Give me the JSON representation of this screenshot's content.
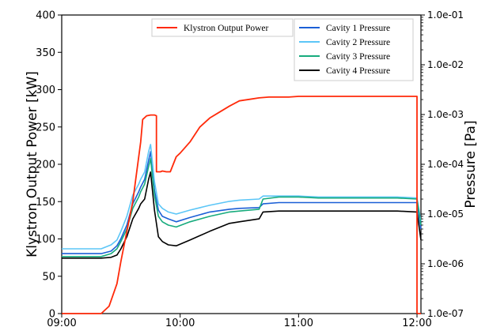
{
  "chart_data": {
    "type": "line",
    "title": "",
    "xlabel": "",
    "ylabel": "Klystron Output Power [kW]",
    "ylabel_right": "Pressure [Pa]",
    "x_ticks": [
      "09:00",
      "10:00",
      "11:00",
      "12:00"
    ],
    "xlim": [
      "09:00",
      "12:02"
    ],
    "ylim": [
      0,
      400
    ],
    "y_ticks": [
      0,
      50,
      100,
      150,
      200,
      250,
      300,
      350,
      400
    ],
    "y2_scale": "log",
    "y2lim": [
      1e-07,
      0.1
    ],
    "y2_ticks": [
      "1.0e-07",
      "1.0e-06",
      "1.0e-05",
      "1.0e-04",
      "1.0e-03",
      "1.0e-02",
      "1.0e-01"
    ],
    "grid": false,
    "legend_left": {
      "placement": "top-center",
      "entries": [
        "Klystron Output Power"
      ]
    },
    "legend_right": {
      "placement": "top-right",
      "entries": [
        "Cavity 1 Pressure",
        "Cavity 2 Pressure",
        "Cavity 3 Pressure",
        "Cavity 4 Pressure"
      ]
    },
    "series": [
      {
        "name": "Klystron Output Power",
        "axis": "left",
        "color": "#ff2a0a",
        "x": [
          "09:00",
          "09:20",
          "09:24",
          "09:28",
          "09:30",
          "09:33",
          "09:36",
          "09:38",
          "09:40",
          "09:41",
          "09:43",
          "09:45",
          "09:47",
          "09:48",
          "09:48",
          "09:50",
          "09:51",
          "09:53",
          "09:55",
          "09:58",
          "10:00",
          "10:05",
          "10:10",
          "10:15",
          "10:20",
          "10:25",
          "10:30",
          "10:35",
          "10:40",
          "10:45",
          "10:50",
          "10:55",
          "11:00",
          "11:10",
          "11:20",
          "11:30",
          "11:40",
          "11:50",
          "12:00",
          "12:00",
          "12:02"
        ],
        "y": [
          0,
          0,
          10,
          40,
          70,
          110,
          150,
          190,
          230,
          260,
          265,
          266,
          266,
          265,
          190,
          190,
          191,
          190,
          190,
          210,
          215,
          230,
          250,
          262,
          270,
          278,
          285,
          287,
          289,
          290,
          290,
          290,
          291,
          291,
          291,
          291,
          291,
          291,
          291,
          0,
          0
        ]
      },
      {
        "name": "Cavity 1 Pressure",
        "axis": "right",
        "color": "#1b5fd6",
        "x": [
          "09:00",
          "09:20",
          "09:25",
          "09:28",
          "09:30",
          "09:33",
          "09:36",
          "09:39",
          "09:40",
          "09:42",
          "09:44",
          "09:45",
          "09:47",
          "09:49",
          "09:51",
          "09:54",
          "09:58",
          "10:05",
          "10:15",
          "10:25",
          "10:30",
          "10:40",
          "10:42",
          "10:50",
          "11:00",
          "11:10",
          "11:20",
          "11:30",
          "11:40",
          "11:50",
          "12:00",
          "12:02"
        ],
        "y": [
          1.6e-06,
          1.6e-06,
          1.8e-06,
          2.3e-06,
          3.2e-06,
          6e-06,
          1.6e-05,
          2.8e-05,
          3.5e-05,
          5e-05,
          0.00012,
          0.00018,
          3e-05,
          1.2e-05,
          9e-06,
          8e-06,
          7e-06,
          8.5e-06,
          1.1e-05,
          1.25e-05,
          1.3e-05,
          1.35e-05,
          1.6e-05,
          1.7e-05,
          1.7e-05,
          1.7e-05,
          1.7e-05,
          1.7e-05,
          1.7e-05,
          1.7e-05,
          1.7e-05,
          5e-06
        ]
      },
      {
        "name": "Cavity 2 Pressure",
        "axis": "right",
        "color": "#5cc6f7",
        "x": [
          "09:00",
          "09:20",
          "09:25",
          "09:28",
          "09:30",
          "09:33",
          "09:36",
          "09:39",
          "09:40",
          "09:42",
          "09:44",
          "09:45",
          "09:47",
          "09:49",
          "09:51",
          "09:54",
          "09:58",
          "10:05",
          "10:15",
          "10:25",
          "10:30",
          "10:40",
          "10:42",
          "10:50",
          "11:00",
          "11:10",
          "11:20",
          "11:30",
          "11:40",
          "11:50",
          "12:00",
          "12:02"
        ],
        "y": [
          2e-06,
          2e-06,
          2.4e-06,
          3e-06,
          4.5e-06,
          9e-06,
          2.4e-05,
          4e-05,
          5e-05,
          7e-05,
          0.00018,
          0.00025,
          4.5e-05,
          1.6e-05,
          1.3e-05,
          1.1e-05,
          1e-05,
          1.2e-05,
          1.5e-05,
          1.8e-05,
          1.9e-05,
          2e-05,
          2.3e-05,
          2.3e-05,
          2.3e-05,
          2.2e-05,
          2.2e-05,
          2.2e-05,
          2.2e-05,
          2.2e-05,
          2.1e-05,
          7e-06
        ]
      },
      {
        "name": "Cavity 3 Pressure",
        "axis": "right",
        "color": "#17ab7d",
        "x": [
          "09:00",
          "09:20",
          "09:25",
          "09:28",
          "09:30",
          "09:33",
          "09:36",
          "09:39",
          "09:40",
          "09:42",
          "09:44",
          "09:45",
          "09:47",
          "09:49",
          "09:51",
          "09:54",
          "09:58",
          "10:05",
          "10:15",
          "10:25",
          "10:30",
          "10:40",
          "10:42",
          "10:50",
          "11:00",
          "11:10",
          "11:20",
          "11:30",
          "11:40",
          "11:50",
          "12:00",
          "12:02"
        ],
        "y": [
          1.4e-06,
          1.4e-06,
          1.6e-06,
          2e-06,
          2.8e-06,
          5e-06,
          1.3e-05,
          2.2e-05,
          2.8e-05,
          4e-05,
          9e-05,
          0.00013,
          2.4e-05,
          9e-06,
          7e-06,
          6e-06,
          5.5e-06,
          7e-06,
          9e-06,
          1.1e-05,
          1.15e-05,
          1.25e-05,
          2e-05,
          2.2e-05,
          2.2e-05,
          2.1e-05,
          2.1e-05,
          2.1e-05,
          2.1e-05,
          2.1e-05,
          2e-05,
          6e-06
        ]
      },
      {
        "name": "Cavity 4 Pressure",
        "axis": "right",
        "color": "#000000",
        "x": [
          "09:00",
          "09:20",
          "09:25",
          "09:28",
          "09:30",
          "09:33",
          "09:36",
          "09:39",
          "09:40",
          "09:42",
          "09:44",
          "09:45",
          "09:47",
          "09:49",
          "09:51",
          "09:54",
          "09:58",
          "10:05",
          "10:15",
          "10:25",
          "10:30",
          "10:40",
          "10:42",
          "10:50",
          "11:00",
          "11:10",
          "11:20",
          "11:30",
          "11:40",
          "11:50",
          "12:00",
          "12:02"
        ],
        "y": [
          1.3e-06,
          1.3e-06,
          1.35e-06,
          1.5e-06,
          2e-06,
          3.5e-06,
          8e-06,
          1.3e-05,
          1.6e-05,
          2e-05,
          5e-05,
          7e-05,
          1.2e-05,
          3.5e-06,
          2.8e-06,
          2.4e-06,
          2.3e-06,
          3e-06,
          4.5e-06,
          6.5e-06,
          7e-06,
          8e-06,
          1.1e-05,
          1.15e-05,
          1.15e-05,
          1.15e-05,
          1.15e-05,
          1.15e-05,
          1.15e-05,
          1.15e-05,
          1.1e-05,
          3e-06
        ]
      }
    ]
  }
}
